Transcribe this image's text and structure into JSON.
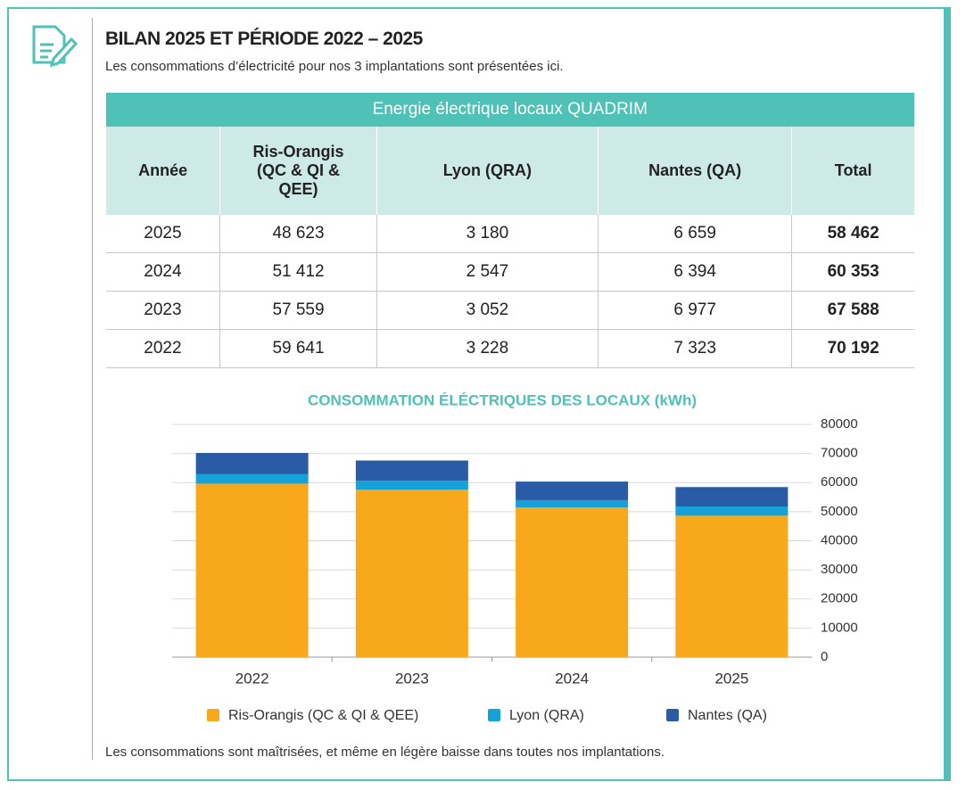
{
  "header": {
    "title": "BILAN 2025 ET PÉRIODE 2022 – 2025",
    "subtitle": "Les consommations d’électricité pour nos 3 implantations sont présentées ici."
  },
  "table": {
    "caption": "Energie électrique locaux QUADRIM",
    "columns": [
      "Année",
      "Ris-Orangis (QC & QI & QEE)",
      "Lyon (QRA)",
      "Nantes (QA)",
      "Total"
    ],
    "rows": [
      [
        "2025",
        "48 623",
        "3 180",
        "6 659",
        "58 462"
      ],
      [
        "2024",
        "51 412",
        "2 547",
        "6 394",
        "60 353"
      ],
      [
        "2023",
        "57 559",
        "3 052",
        "6 977",
        "67 588"
      ],
      [
        "2022",
        "59 641",
        "3 228",
        "7 323",
        "70 192"
      ]
    ]
  },
  "chart_data": {
    "type": "stacked_bar",
    "title": "CONSOMMATION ÉLÉCTRIQUES DES LOCAUX (kWh)",
    "categories": [
      "2022",
      "2023",
      "2024",
      "2025"
    ],
    "series": [
      {
        "name": "Ris-Orangis (QC & QI & QEE)",
        "color": "#f7a81b",
        "values": [
          59641,
          57559,
          51412,
          48623
        ]
      },
      {
        "name": "Lyon (QRA)",
        "color": "#16a2d8",
        "values": [
          3228,
          3052,
          2547,
          3180
        ]
      },
      {
        "name": "Nantes (QA)",
        "color": "#2a5ba5",
        "values": [
          7323,
          6977,
          6394,
          6659
        ]
      }
    ],
    "ylim": [
      0,
      80000
    ],
    "yticks": [
      0,
      10000,
      20000,
      30000,
      40000,
      50000,
      60000,
      70000,
      80000
    ],
    "grid": true,
    "legend": "bottom"
  },
  "footer": "Les consommations sont maîtrisées, et même en légère baisse dans toutes nos implantations."
}
